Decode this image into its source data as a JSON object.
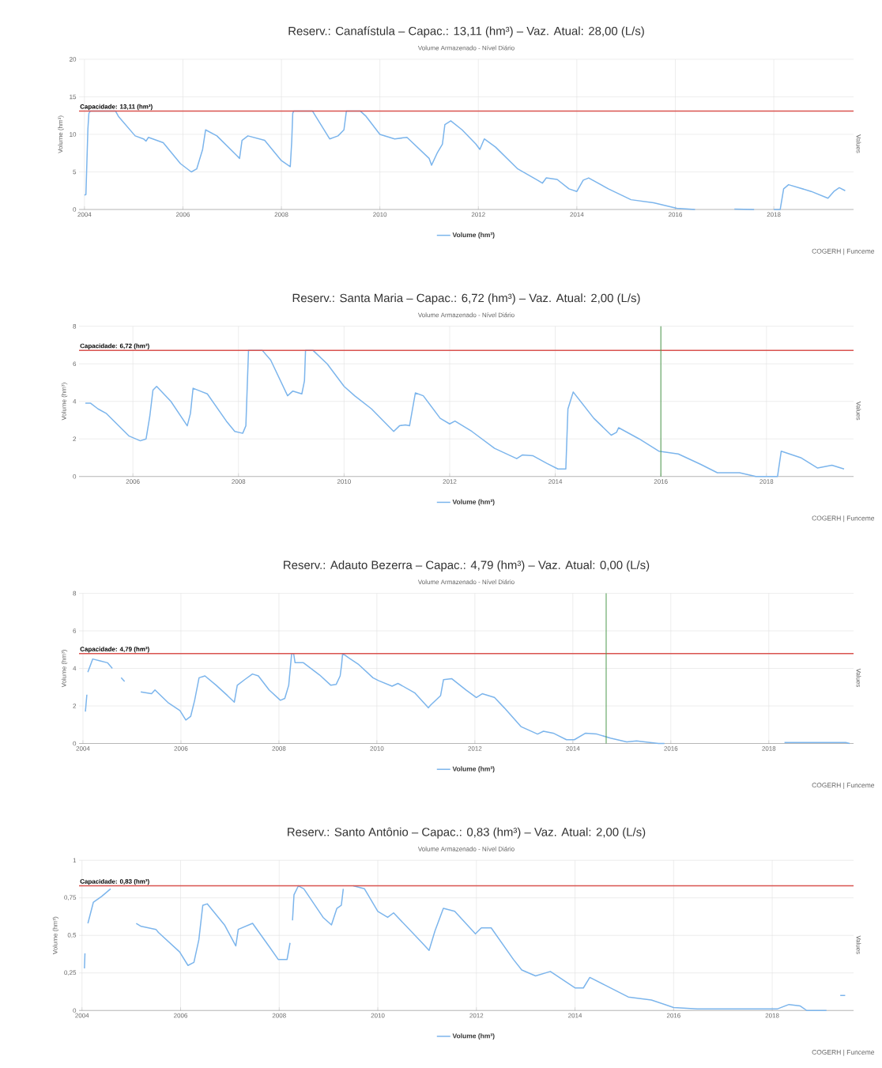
{
  "chart_data": [
    {
      "type": "line",
      "title": "Reserv.: Canafístula – Capac.: 13,11 (hm³) – Vaz. Atual: 28,00 (L/s)",
      "subtitle": "Volume Armazenado - Nível Diário",
      "ylabel": "Volume (hm³)",
      "y2label": "Values",
      "annotations": [
        "COGERH | Funceme"
      ],
      "grid": true,
      "legend": "bottom",
      "xlim": [
        2003.89,
        2019.62
      ],
      "ylim": [
        0,
        20
      ],
      "xticks": [
        2004,
        2006,
        2008,
        2010,
        2012,
        2014,
        2016,
        2018
      ],
      "yticks": [
        0,
        5,
        10,
        15,
        20
      ],
      "ref_lines": [
        {
          "axis": "y",
          "value": 13.11,
          "label": "Capacidade: 13,11 (hm³)",
          "color": "#d9534f"
        }
      ],
      "series": [
        {
          "name": "Volume (hm³)",
          "color": "#7cb5ec",
          "x": [
            2004.0,
            2004.03,
            2004.07,
            2004.09,
            2004.12,
            2004.63,
            2004.69,
            2005.03,
            2005.2,
            2005.25,
            2005.3,
            2005.6,
            2005.95,
            2006.17,
            2006.28,
            2006.4,
            2006.46,
            2006.69,
            2007.09,
            2007.15,
            2007.2,
            2007.32,
            2007.66,
            2008.0,
            2008.18,
            2008.21,
            2008.23,
            2008.25,
            2008.63,
            2008.98,
            2009.15,
            2009.27,
            2009.32,
            2009.6,
            2009.72,
            2010.0,
            2010.3,
            2010.55,
            2011.0,
            2011.05,
            2011.17,
            2011.27,
            2011.32,
            2011.44,
            2011.67,
            2011.95,
            2012.03,
            2012.12,
            2012.35,
            2012.8,
            2013.2,
            2013.3,
            2013.38,
            2013.6,
            2013.84,
            2014.0,
            2014.13,
            2014.24,
            2014.64,
            2015.1,
            2015.56,
            2016.03,
            2016.4,
            2016.8,
            2017.2,
            2017.6,
            2017.8,
            2018.0,
            2018.13,
            2018.2,
            2018.3,
            2018.76,
            2019.1,
            2019.22,
            2019.33,
            2019.45
          ],
          "values": [
            1.9,
            2.0,
            10.7,
            12.8,
            13.11,
            13.11,
            12.4,
            9.8,
            9.4,
            9.1,
            9.6,
            8.9,
            6.1,
            5.0,
            5.4,
            8.0,
            10.6,
            9.8,
            7.2,
            6.8,
            9.2,
            9.8,
            9.2,
            6.5,
            5.7,
            9.1,
            12.8,
            13.11,
            13.11,
            9.4,
            9.8,
            10.6,
            13.11,
            13.11,
            12.4,
            10.0,
            9.4,
            9.6,
            6.8,
            5.9,
            7.6,
            8.7,
            11.3,
            11.8,
            10.6,
            8.7,
            8.0,
            9.4,
            8.3,
            5.4,
            3.9,
            3.5,
            4.2,
            4.0,
            2.75,
            2.4,
            3.9,
            4.2,
            2.75,
            1.3,
            0.9,
            0.15,
            0,
            null,
            0.05,
            0,
            null,
            0,
            0,
            2.75,
            3.3,
            2.4,
            1.5,
            2.4,
            2.9,
            2.5
          ]
        }
      ]
    },
    {
      "type": "line",
      "title": "Reserv.: Santa Maria – Capac.: 6,72 (hm³) – Vaz. Atual: 2,00 (L/s)",
      "subtitle": "Volume Armazenado - Nível Diário",
      "ylabel": "Volume (hm³)",
      "y2label": "Values",
      "annotations": [
        "COGERH | Funceme"
      ],
      "grid": true,
      "legend": "bottom",
      "xlim": [
        2004.98,
        2019.65
      ],
      "ylim": [
        0,
        8
      ],
      "xticks": [
        2006,
        2008,
        2010,
        2012,
        2014,
        2016,
        2018
      ],
      "yticks": [
        0,
        2,
        4,
        6,
        8
      ],
      "ref_lines": [
        {
          "axis": "y",
          "value": 6.72,
          "label": "Capacidade: 6,72 (hm³)",
          "color": "#d9534f"
        },
        {
          "axis": "x",
          "value": 2016.0,
          "color": "#4e9a4e"
        }
      ],
      "series": [
        {
          "name": "Volume (hm³)",
          "color": "#7cb5ec",
          "x": [
            2005.1,
            2005.2,
            2005.34,
            2005.5,
            2005.93,
            2006.14,
            2006.25,
            2006.32,
            2006.38,
            2006.45,
            2006.72,
            2007.03,
            2007.09,
            2007.14,
            2007.41,
            2007.77,
            2007.93,
            2008.08,
            2008.14,
            2008.19,
            2008.45,
            2008.61,
            2008.93,
            2009.03,
            2009.2,
            2009.25,
            2009.27,
            2009.41,
            2009.68,
            2010.0,
            2010.2,
            2010.52,
            2010.94,
            2011.05,
            2011.16,
            2011.24,
            2011.35,
            2011.5,
            2011.82,
            2012.0,
            2012.1,
            2012.42,
            2012.85,
            2013.27,
            2013.38,
            2013.58,
            2013.84,
            2014.05,
            2014.2,
            2014.24,
            2014.34,
            2014.73,
            2015.06,
            2015.16,
            2015.2,
            2015.59,
            2015.96,
            2016.33,
            2016.75,
            2017.07,
            2017.49,
            2017.8,
            2018.21,
            2018.28,
            2018.65,
            2018.97,
            2019.24,
            2019.47
          ],
          "values": [
            3.9,
            3.9,
            3.6,
            3.35,
            2.15,
            1.9,
            2.0,
            3.2,
            4.6,
            4.8,
            4.0,
            2.7,
            3.35,
            4.7,
            4.4,
            2.95,
            2.4,
            2.3,
            2.7,
            6.72,
            6.72,
            6.2,
            4.3,
            4.55,
            4.4,
            5.1,
            6.72,
            6.72,
            6.0,
            4.8,
            4.3,
            3.6,
            2.4,
            2.7,
            2.75,
            2.7,
            4.45,
            4.3,
            3.1,
            2.8,
            2.95,
            2.4,
            1.5,
            0.95,
            1.15,
            1.1,
            0.7,
            0.4,
            0.4,
            3.6,
            4.5,
            3.1,
            2.2,
            2.35,
            2.6,
            2.0,
            1.35,
            1.2,
            0.65,
            0.2,
            0.2,
            0,
            0,
            1.35,
            1.0,
            0.45,
            0.6,
            0.4
          ]
        }
      ]
    },
    {
      "type": "line",
      "title": "Reserv.: Adauto Bezerra – Capac.: 4,79 (hm³) – Vaz. Atual: 0,00 (L/s)",
      "subtitle": "Volume Armazenado - Nível Diário",
      "ylabel": "Volume (hm³)",
      "y2label": "Values",
      "annotations": [
        "COGERH | Funceme"
      ],
      "grid": true,
      "legend": "bottom",
      "xlim": [
        2003.92,
        2019.73
      ],
      "ylim": [
        0,
        8
      ],
      "xticks": [
        2004,
        2006,
        2008,
        2010,
        2012,
        2014,
        2016,
        2018
      ],
      "yticks": [
        0,
        2,
        4,
        6,
        8
      ],
      "ref_lines": [
        {
          "axis": "y",
          "value": 4.79,
          "label": "Capacidade: 4,79 (hm³)",
          "color": "#d9534f"
        },
        {
          "axis": "x",
          "value": 2014.68,
          "color": "#4e9a4e"
        }
      ],
      "series": [
        {
          "name": "Volume (hm³)",
          "color": "#7cb5ec",
          "x": [
            2004.05,
            2004.08,
            2004.09,
            2004.1,
            2004.2,
            2004.35,
            2004.5,
            2004.6,
            2004.7,
            2004.78,
            2004.85,
            2005.0,
            2005.18,
            2005.4,
            2005.47,
            2005.75,
            2005.98,
            2006.1,
            2006.2,
            2006.28,
            2006.37,
            2006.49,
            2006.72,
            2006.95,
            2007.09,
            2007.15,
            2007.3,
            2007.46,
            2007.58,
            2007.8,
            2008.03,
            2008.12,
            2008.2,
            2008.26,
            2008.3,
            2008.33,
            2008.5,
            2008.83,
            2009.06,
            2009.17,
            2009.25,
            2009.28,
            2009.3,
            2009.43,
            2009.63,
            2009.92,
            2010.03,
            2010.31,
            2010.43,
            2010.77,
            2011.05,
            2011.1,
            2011.3,
            2011.36,
            2011.53,
            2011.82,
            2012.03,
            2012.15,
            2012.4,
            2012.6,
            2012.94,
            2013.28,
            2013.4,
            2013.6,
            2013.87,
            2014.03,
            2014.26,
            2014.49,
            2014.77,
            2015.1,
            2015.3,
            2015.75,
            2015.87,
            2017.0,
            2018.32,
            2019.57,
            2019.65
          ],
          "values": [
            1.7,
            2.6,
            null,
            3.8,
            4.5,
            4.4,
            4.3,
            4.0,
            null,
            3.5,
            3.3,
            null,
            2.75,
            2.65,
            2.85,
            2.15,
            1.75,
            1.25,
            1.45,
            2.3,
            3.5,
            3.6,
            3.1,
            2.55,
            2.2,
            3.1,
            3.4,
            3.7,
            3.6,
            2.85,
            2.3,
            2.4,
            3.1,
            4.79,
            4.79,
            4.3,
            4.3,
            3.65,
            3.1,
            3.15,
            3.6,
            4.2,
            4.79,
            4.55,
            4.2,
            3.5,
            3.35,
            3.05,
            3.2,
            2.7,
            1.9,
            2.05,
            2.55,
            3.4,
            3.45,
            2.85,
            2.45,
            2.65,
            2.45,
            1.9,
            0.9,
            0.5,
            0.65,
            0.55,
            0.2,
            0.2,
            0.55,
            0.5,
            0.28,
            0.08,
            0.14,
            0,
            0,
            null,
            0.05,
            0.05,
            0
          ]
        }
      ]
    },
    {
      "type": "line",
      "title": "Reserv.: Santo Antônio – Capac.: 0,83 (hm³) – Vaz. Atual: 2,00 (L/s)",
      "subtitle": "Volume Armazenado - Nível Diário",
      "ylabel": "Volume (hm³)",
      "y2label": "Values",
      "annotations": [
        "COGERH | Funceme"
      ],
      "grid": true,
      "legend": "bottom",
      "xlim": [
        2003.94,
        2019.65
      ],
      "ylim": [
        0,
        1
      ],
      "xticks": [
        2004,
        2006,
        2008,
        2010,
        2012,
        2014,
        2016,
        2018
      ],
      "yticks": [
        0,
        {
          "value": 0.25,
          "label": "0,25"
        },
        {
          "value": 0.5,
          "label": "0,5"
        },
        {
          "value": 0.75,
          "label": "0,75"
        },
        1
      ],
      "ref_lines": [
        {
          "axis": "y",
          "value": 0.83,
          "label": "Capacidade: 0,83 (hm³)",
          "color": "#d9534f"
        }
      ],
      "series": [
        {
          "name": "Volume (hm³)",
          "color": "#7cb5ec",
          "x": [
            2004.05,
            2004.06,
            2004.09,
            2004.12,
            2004.23,
            2004.4,
            2004.58,
            2004.8,
            2005.1,
            2005.2,
            2005.5,
            2005.55,
            2005.98,
            2006.15,
            2006.27,
            2006.37,
            2006.45,
            2006.54,
            2006.89,
            2007.12,
            2007.17,
            2007.46,
            2007.81,
            2007.98,
            2008.16,
            2008.22,
            2008.25,
            2008.27,
            2008.3,
            2008.39,
            2008.5,
            2008.89,
            2009.06,
            2009.17,
            2009.26,
            2009.3,
            2009.4,
            2009.5,
            2009.73,
            2010.0,
            2010.2,
            2010.32,
            2010.9,
            2011.04,
            2011.16,
            2011.33,
            2011.56,
            2011.98,
            2012.1,
            2012.3,
            2012.75,
            2012.92,
            2013.2,
            2013.5,
            2014.0,
            2014.17,
            2014.3,
            2014.6,
            2015.08,
            2015.55,
            2016.0,
            2016.48,
            2018.1,
            2018.34,
            2018.57,
            2018.7,
            2019.1,
            2019.25,
            2019.38,
            2019.48
          ],
          "values": [
            0.28,
            0.38,
            null,
            0.58,
            0.72,
            0.76,
            0.81,
            null,
            0.58,
            0.56,
            0.54,
            0.52,
            0.39,
            0.3,
            0.32,
            0.47,
            0.7,
            0.71,
            0.57,
            0.43,
            0.54,
            0.58,
            0.42,
            0.34,
            0.34,
            0.45,
            null,
            0.6,
            0.77,
            0.83,
            0.81,
            0.62,
            0.57,
            0.68,
            0.7,
            0.81,
            null,
            0.83,
            0.81,
            0.66,
            0.62,
            0.65,
            0.45,
            0.4,
            0.53,
            0.68,
            0.66,
            0.51,
            0.55,
            0.55,
            0.34,
            0.27,
            0.23,
            0.26,
            0.15,
            0.15,
            0.22,
            0.17,
            0.09,
            0.07,
            0.02,
            0.01,
            0.01,
            0.04,
            0.03,
            0,
            0,
            null,
            0.1,
            0.1
          ]
        }
      ]
    }
  ]
}
